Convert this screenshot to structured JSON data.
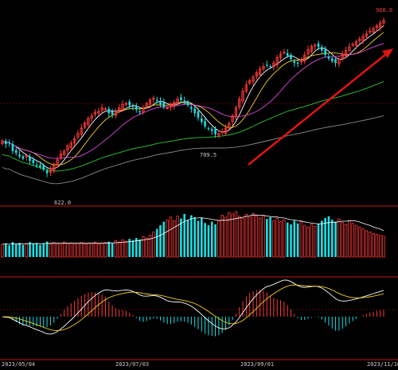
{
  "colors": {
    "background": "#000000",
    "up_candle": "#ff3a3a",
    "down_candle": "#19e0e6",
    "panel_divider": "#c01818",
    "grid_line": "#5a0a0a",
    "ma5": "#ffffff",
    "ma10": "#f2d020",
    "ma20": "#e048e0",
    "ma60": "#2fc82f",
    "ma120": "#8a8a8a",
    "trend_arrow": "#e01414",
    "axis_text": "#c8c8c8",
    "price_label": "#c8c8c8",
    "high_label": "#ff3a3a",
    "dif_line": "#ffffff",
    "dea_line": "#f2d020"
  },
  "chart_data": {
    "type": "candlestick",
    "x_axis_labels": [
      "2023/05/04",
      "2023/07/03",
      "2023/09/01",
      "2023/11/10"
    ],
    "price_annotations": {
      "low": "622.0",
      "mid_low": "709.5",
      "high": "968.0"
    },
    "ylim": [
      560,
      1000
    ],
    "close": [
      695,
      688,
      690,
      672,
      668,
      660,
      655,
      662,
      650,
      645,
      640,
      636,
      630,
      622,
      632,
      640,
      652,
      666,
      672,
      684,
      690,
      700,
      712,
      724,
      736,
      746,
      752,
      760,
      762,
      770,
      768,
      758,
      755,
      762,
      770,
      778,
      780,
      776,
      772,
      766,
      760,
      768,
      780,
      788,
      792,
      786,
      778,
      772,
      770,
      778,
      782,
      790,
      788,
      782,
      776,
      768,
      758,
      748,
      738,
      728,
      722,
      718,
      710,
      712,
      716,
      724,
      735,
      752,
      770,
      790,
      808,
      822,
      832,
      840,
      850,
      858,
      864,
      866,
      862,
      872,
      884,
      892,
      896,
      888,
      880,
      872,
      870,
      878,
      890,
      902,
      910,
      912,
      908,
      900,
      890,
      882,
      876,
      872,
      880,
      892,
      900,
      908,
      914,
      920,
      926,
      932,
      938,
      944,
      950,
      956,
      962,
      968
    ],
    "volume": [
      0.28,
      0.3,
      0.26,
      0.33,
      0.28,
      0.31,
      0.27,
      0.3,
      0.33,
      0.29,
      0.31,
      0.27,
      0.3,
      0.34,
      0.29,
      0.32,
      0.28,
      0.3,
      0.33,
      0.29,
      0.31,
      0.28,
      0.3,
      0.32,
      0.29,
      0.31,
      0.3,
      0.33,
      0.29,
      0.31,
      0.32,
      0.34,
      0.3,
      0.36,
      0.33,
      0.38,
      0.35,
      0.4,
      0.37,
      0.42,
      0.39,
      0.45,
      0.42,
      0.48,
      0.55,
      0.62,
      0.7,
      0.78,
      0.82,
      0.88,
      0.8,
      0.9,
      0.85,
      0.95,
      0.82,
      0.92,
      0.88,
      0.8,
      0.86,
      0.75,
      0.7,
      0.78,
      0.72,
      0.8,
      0.92,
      0.88,
      0.98,
      0.95,
      1.0,
      0.9,
      0.85,
      0.94,
      0.88,
      0.96,
      0.9,
      0.86,
      0.92,
      0.84,
      0.88,
      0.8,
      0.85,
      0.78,
      0.82,
      0.76,
      0.72,
      0.8,
      0.74,
      0.78,
      0.7,
      0.66,
      0.72,
      0.68,
      0.74,
      0.8,
      0.86,
      0.9,
      0.82,
      0.78,
      0.84,
      0.76,
      0.72,
      0.8,
      0.74,
      0.7,
      0.66,
      0.62,
      0.58,
      0.55,
      0.52,
      0.5,
      0.48,
      0.46
    ]
  }
}
